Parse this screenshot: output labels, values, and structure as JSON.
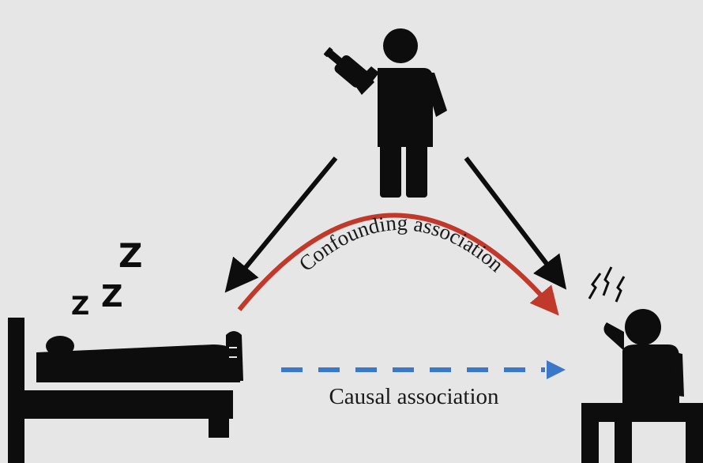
{
  "colors": {
    "background": "#e6e6e6",
    "figure": "#0d0d0d",
    "confounding": "#c0392b",
    "causal": "#3b78c9",
    "label": "#1a1a1a"
  },
  "sleep_letters": [
    "Z",
    "Z",
    "Z"
  ],
  "labels": {
    "confounding": "Confounding association",
    "causal": "Causal association"
  },
  "icons": {
    "drinker": "person-drinking-icon",
    "sleeper": "person-in-bed-icon",
    "stressed": "stressed-person-icon"
  }
}
